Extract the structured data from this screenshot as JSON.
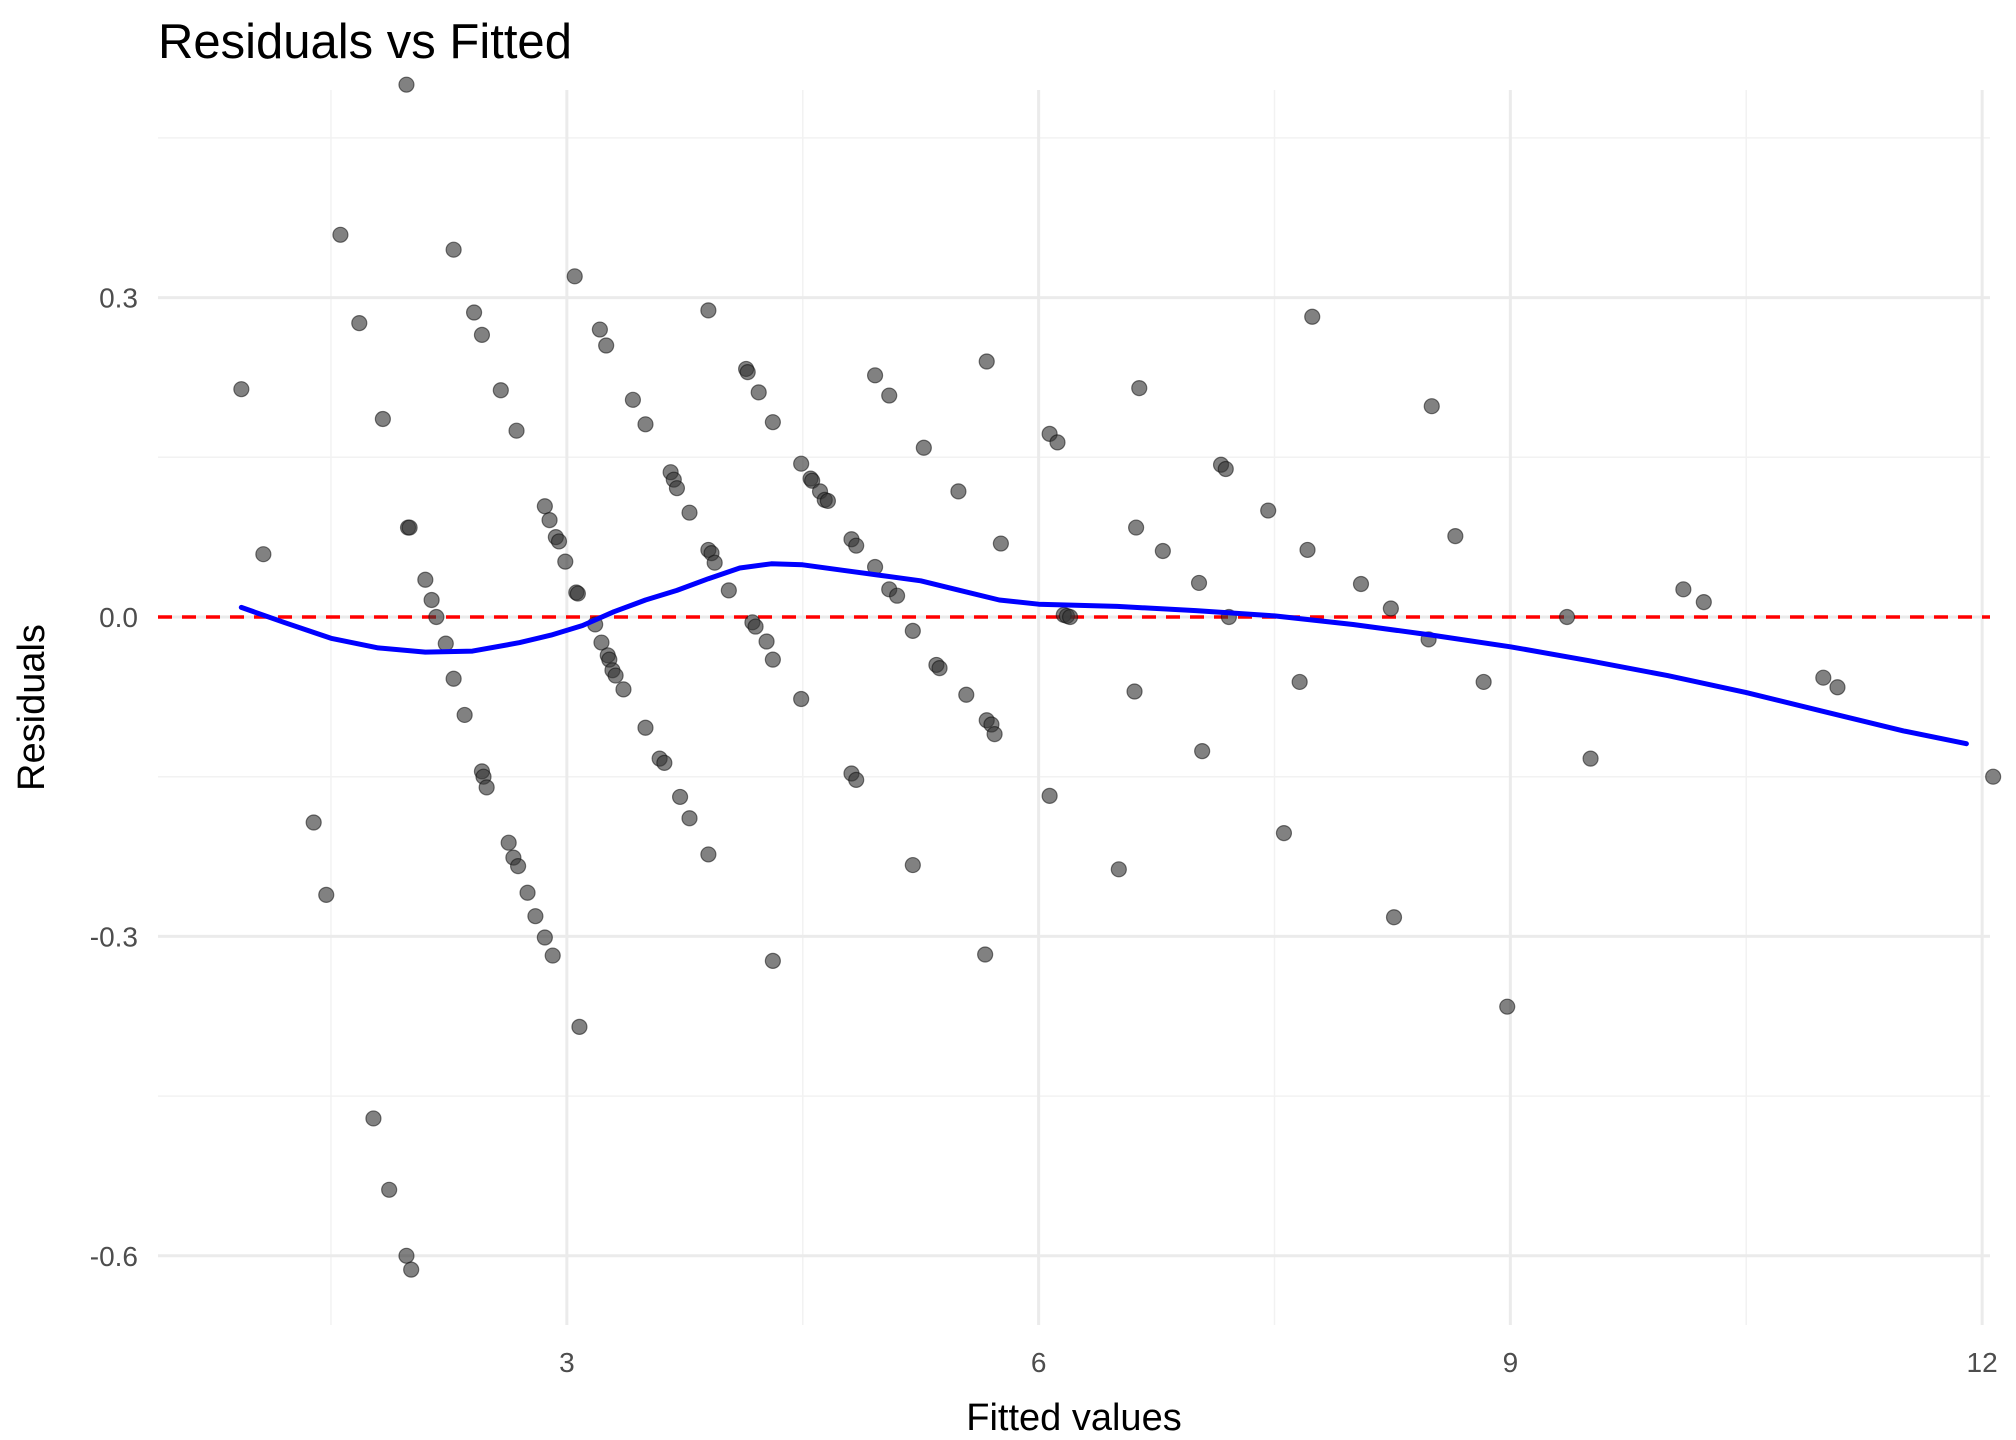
{
  "chart_data": {
    "type": "scatter",
    "title": "Residuals vs Fitted",
    "xlabel": "Fitted values",
    "ylabel": "Residuals",
    "xlim": [
      0.4,
      12.05
    ],
    "ylim": [
      -0.665,
      0.495
    ],
    "x_ticks": [
      3,
      6,
      9,
      12
    ],
    "x_tick_labels": [
      "3",
      "6",
      "9",
      "12"
    ],
    "y_ticks": [
      -0.6,
      -0.3,
      0.0,
      0.3
    ],
    "y_tick_labels": [
      "-0.6",
      "-0.3",
      "0.0",
      "0.3"
    ],
    "grid": true,
    "legend": "none",
    "colors": {
      "points": "#333333",
      "smooth_line": "#0000ff",
      "reference_line": "#ff0000",
      "grid_major": "#ebebeb",
      "grid_minor": "#f2f2f2"
    },
    "reference_line": {
      "y": 0.0,
      "style": "dashed"
    },
    "points": [
      {
        "x": 0.93,
        "y": 0.214
      },
      {
        "x": 1.07,
        "y": 0.059
      },
      {
        "x": 1.39,
        "y": -0.193
      },
      {
        "x": 1.47,
        "y": -0.261
      },
      {
        "x": 1.56,
        "y": 0.359
      },
      {
        "x": 1.68,
        "y": 0.276
      },
      {
        "x": 1.77,
        "y": -0.471
      },
      {
        "x": 1.83,
        "y": 0.186
      },
      {
        "x": 1.87,
        "y": -0.538
      },
      {
        "x": 1.98,
        "y": 0.5
      },
      {
        "x": 1.98,
        "y": -0.6
      },
      {
        "x": 1.99,
        "y": 0.084
      },
      {
        "x": 2.0,
        "y": 0.084
      },
      {
        "x": 2.01,
        "y": -0.613
      },
      {
        "x": 2.1,
        "y": 0.035
      },
      {
        "x": 2.14,
        "y": 0.016
      },
      {
        "x": 2.17,
        "y": 0.0
      },
      {
        "x": 2.23,
        "y": -0.025
      },
      {
        "x": 2.28,
        "y": 0.345
      },
      {
        "x": 2.28,
        "y": -0.058
      },
      {
        "x": 2.35,
        "y": -0.092
      },
      {
        "x": 2.41,
        "y": 0.286
      },
      {
        "x": 2.46,
        "y": 0.265
      },
      {
        "x": 2.46,
        "y": -0.145
      },
      {
        "x": 2.47,
        "y": -0.15
      },
      {
        "x": 2.49,
        "y": -0.16
      },
      {
        "x": 2.58,
        "y": 0.213
      },
      {
        "x": 2.63,
        "y": -0.212
      },
      {
        "x": 2.66,
        "y": -0.226
      },
      {
        "x": 2.68,
        "y": 0.175
      },
      {
        "x": 2.69,
        "y": -0.234
      },
      {
        "x": 2.75,
        "y": -0.259
      },
      {
        "x": 2.8,
        "y": -0.281
      },
      {
        "x": 2.86,
        "y": 0.104
      },
      {
        "x": 2.86,
        "y": -0.301
      },
      {
        "x": 2.89,
        "y": 0.091
      },
      {
        "x": 2.91,
        "y": -0.318
      },
      {
        "x": 2.93,
        "y": 0.075
      },
      {
        "x": 2.95,
        "y": 0.071
      },
      {
        "x": 2.99,
        "y": 0.052
      },
      {
        "x": 3.06,
        "y": 0.023
      },
      {
        "x": 3.07,
        "y": 0.022
      },
      {
        "x": 3.05,
        "y": 0.32
      },
      {
        "x": 3.08,
        "y": -0.385
      },
      {
        "x": 3.18,
        "y": -0.007
      },
      {
        "x": 3.21,
        "y": 0.27
      },
      {
        "x": 3.22,
        "y": -0.024
      },
      {
        "x": 3.25,
        "y": 0.255
      },
      {
        "x": 3.26,
        "y": -0.036
      },
      {
        "x": 3.27,
        "y": -0.04
      },
      {
        "x": 3.29,
        "y": -0.05
      },
      {
        "x": 3.31,
        "y": -0.055
      },
      {
        "x": 3.36,
        "y": -0.068
      },
      {
        "x": 3.42,
        "y": 0.204
      },
      {
        "x": 3.5,
        "y": 0.181
      },
      {
        "x": 3.5,
        "y": -0.104
      },
      {
        "x": 3.59,
        "y": -0.133
      },
      {
        "x": 3.62,
        "y": -0.137
      },
      {
        "x": 3.66,
        "y": 0.136
      },
      {
        "x": 3.68,
        "y": 0.129
      },
      {
        "x": 3.7,
        "y": 0.121
      },
      {
        "x": 3.72,
        "y": -0.169
      },
      {
        "x": 3.78,
        "y": 0.098
      },
      {
        "x": 3.78,
        "y": -0.189
      },
      {
        "x": 3.9,
        "y": 0.288
      },
      {
        "x": 3.9,
        "y": 0.063
      },
      {
        "x": 3.92,
        "y": 0.06
      },
      {
        "x": 3.94,
        "y": 0.051
      },
      {
        "x": 3.9,
        "y": -0.223
      },
      {
        "x": 4.03,
        "y": 0.025
      },
      {
        "x": 4.14,
        "y": 0.233
      },
      {
        "x": 4.15,
        "y": 0.23
      },
      {
        "x": 4.18,
        "y": -0.005
      },
      {
        "x": 4.2,
        "y": -0.009
      },
      {
        "x": 4.22,
        "y": 0.211
      },
      {
        "x": 4.27,
        "y": -0.023
      },
      {
        "x": 4.31,
        "y": 0.183
      },
      {
        "x": 4.31,
        "y": -0.04
      },
      {
        "x": 4.31,
        "y": -0.323
      },
      {
        "x": 4.49,
        "y": 0.144
      },
      {
        "x": 4.49,
        "y": -0.077
      },
      {
        "x": 4.55,
        "y": 0.13
      },
      {
        "x": 4.56,
        "y": 0.128
      },
      {
        "x": 4.61,
        "y": 0.118
      },
      {
        "x": 4.64,
        "y": 0.11
      },
      {
        "x": 4.66,
        "y": 0.109
      },
      {
        "x": 4.81,
        "y": 0.073
      },
      {
        "x": 4.84,
        "y": 0.067
      },
      {
        "x": 4.81,
        "y": -0.147
      },
      {
        "x": 4.84,
        "y": -0.153
      },
      {
        "x": 4.96,
        "y": 0.227
      },
      {
        "x": 4.96,
        "y": 0.047
      },
      {
        "x": 5.05,
        "y": 0.208
      },
      {
        "x": 5.05,
        "y": 0.026
      },
      {
        "x": 5.1,
        "y": 0.02
      },
      {
        "x": 5.27,
        "y": 0.159
      },
      {
        "x": 5.2,
        "y": -0.013
      },
      {
        "x": 5.2,
        "y": -0.233
      },
      {
        "x": 5.35,
        "y": -0.045
      },
      {
        "x": 5.37,
        "y": -0.048
      },
      {
        "x": 5.49,
        "y": 0.118
      },
      {
        "x": 5.54,
        "y": -0.073
      },
      {
        "x": 5.67,
        "y": 0.24
      },
      {
        "x": 5.67,
        "y": -0.097
      },
      {
        "x": 5.7,
        "y": -0.101
      },
      {
        "x": 5.72,
        "y": -0.11
      },
      {
        "x": 5.66,
        "y": -0.317
      },
      {
        "x": 5.76,
        "y": 0.069
      },
      {
        "x": 6.07,
        "y": 0.172
      },
      {
        "x": 6.12,
        "y": 0.164
      },
      {
        "x": 6.07,
        "y": -0.168
      },
      {
        "x": 6.16,
        "y": 0.002
      },
      {
        "x": 6.18,
        "y": 0.001
      },
      {
        "x": 6.2,
        "y": 0.0
      },
      {
        "x": 6.51,
        "y": -0.237
      },
      {
        "x": 6.62,
        "y": 0.084
      },
      {
        "x": 6.61,
        "y": -0.07
      },
      {
        "x": 6.64,
        "y": 0.215
      },
      {
        "x": 6.79,
        "y": 0.062
      },
      {
        "x": 7.02,
        "y": 0.032
      },
      {
        "x": 7.04,
        "y": -0.126
      },
      {
        "x": 7.16,
        "y": 0.143
      },
      {
        "x": 7.19,
        "y": 0.139
      },
      {
        "x": 7.21,
        "y": 0.0
      },
      {
        "x": 7.46,
        "y": 0.1
      },
      {
        "x": 7.56,
        "y": -0.203
      },
      {
        "x": 7.66,
        "y": -0.061
      },
      {
        "x": 7.71,
        "y": 0.063
      },
      {
        "x": 7.74,
        "y": 0.282
      },
      {
        "x": 8.05,
        "y": 0.031
      },
      {
        "x": 8.24,
        "y": 0.008
      },
      {
        "x": 8.26,
        "y": -0.282
      },
      {
        "x": 8.48,
        "y": -0.021
      },
      {
        "x": 8.5,
        "y": 0.198
      },
      {
        "x": 8.65,
        "y": 0.076
      },
      {
        "x": 8.83,
        "y": -0.061
      },
      {
        "x": 8.98,
        "y": -0.366
      },
      {
        "x": 9.36,
        "y": 0.0
      },
      {
        "x": 9.51,
        "y": -0.133
      },
      {
        "x": 10.1,
        "y": 0.026
      },
      {
        "x": 10.23,
        "y": 0.014
      },
      {
        "x": 10.99,
        "y": -0.057
      },
      {
        "x": 11.08,
        "y": -0.066
      },
      {
        "x": 12.07,
        "y": -0.15
      }
    ],
    "smooth_line": [
      {
        "x": 0.93,
        "y": 0.009
      },
      {
        "x": 1.2,
        "y": -0.005
      },
      {
        "x": 1.5,
        "y": -0.02
      },
      {
        "x": 1.8,
        "y": -0.029
      },
      {
        "x": 2.1,
        "y": -0.033
      },
      {
        "x": 2.4,
        "y": -0.032
      },
      {
        "x": 2.7,
        "y": -0.024
      },
      {
        "x": 2.9,
        "y": -0.017
      },
      {
        "x": 3.1,
        "y": -0.008
      },
      {
        "x": 3.3,
        "y": 0.005
      },
      {
        "x": 3.5,
        "y": 0.016
      },
      {
        "x": 3.7,
        "y": 0.025
      },
      {
        "x": 3.9,
        "y": 0.036
      },
      {
        "x": 4.1,
        "y": 0.046
      },
      {
        "x": 4.3,
        "y": 0.05
      },
      {
        "x": 4.5,
        "y": 0.049
      },
      {
        "x": 4.75,
        "y": 0.044
      },
      {
        "x": 5.0,
        "y": 0.039
      },
      {
        "x": 5.25,
        "y": 0.034
      },
      {
        "x": 5.5,
        "y": 0.025
      },
      {
        "x": 5.75,
        "y": 0.016
      },
      {
        "x": 6.0,
        "y": 0.012
      },
      {
        "x": 6.5,
        "y": 0.01
      },
      {
        "x": 7.0,
        "y": 0.006
      },
      {
        "x": 7.5,
        "y": 0.001
      },
      {
        "x": 8.0,
        "y": -0.007
      },
      {
        "x": 8.5,
        "y": -0.017
      },
      {
        "x": 9.0,
        "y": -0.028
      },
      {
        "x": 9.5,
        "y": -0.041
      },
      {
        "x": 10.0,
        "y": -0.055
      },
      {
        "x": 10.5,
        "y": -0.071
      },
      {
        "x": 11.0,
        "y": -0.089
      },
      {
        "x": 11.5,
        "y": -0.107
      },
      {
        "x": 11.9,
        "y": -0.119
      }
    ]
  }
}
